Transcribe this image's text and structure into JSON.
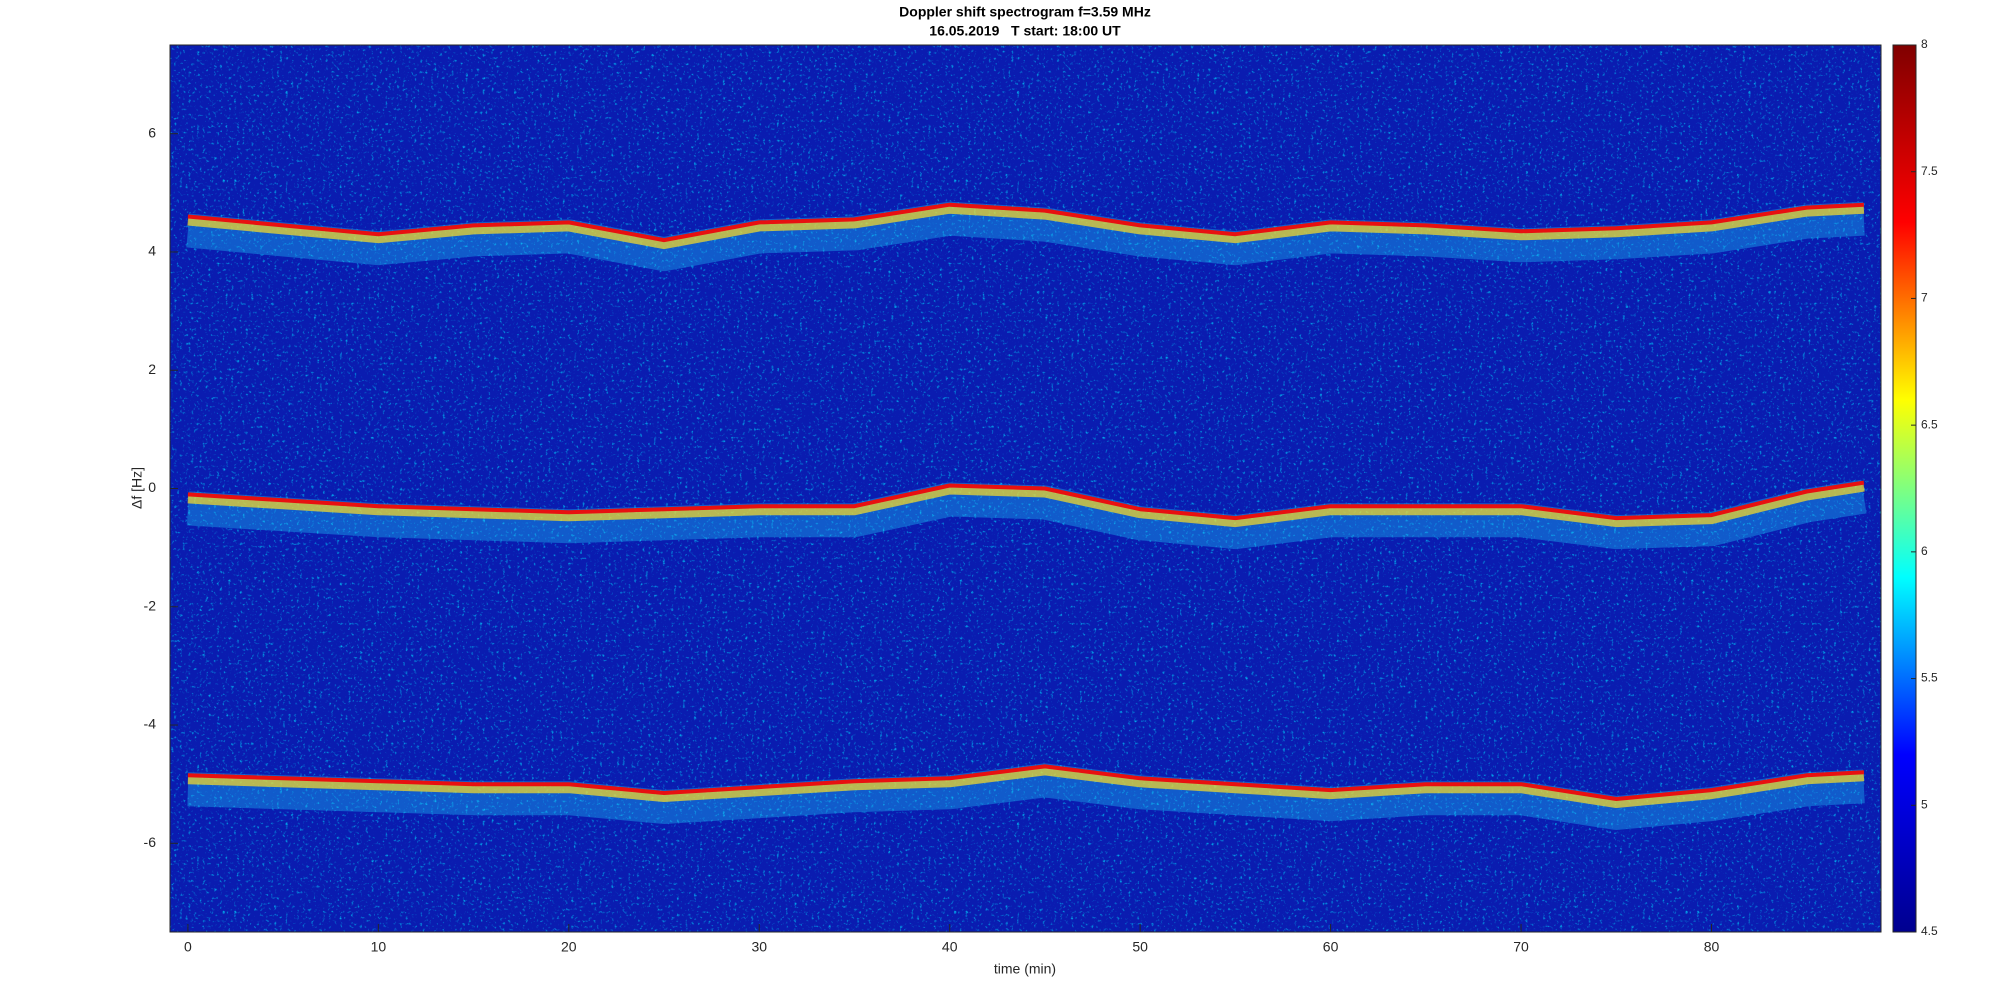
{
  "chart_data": {
    "type": "spectrogram",
    "title": "Doppler shift spectrogram f=3.59 MHz",
    "subtitle": "16.05.2019   T start: 18:00 UT",
    "x_label": "time (min)",
    "y_label": "Δf [Hz]",
    "xlim": [
      -0.94,
      88.9
    ],
    "ylim": [
      -7.5,
      7.5
    ],
    "xticks": [
      0,
      10,
      20,
      30,
      40,
      50,
      60,
      70,
      80
    ],
    "yticks": [
      -6,
      -4,
      -2,
      0,
      2,
      4,
      6
    ],
    "x": [
      0,
      5,
      10,
      15,
      20,
      25,
      30,
      35,
      40,
      45,
      50,
      55,
      60,
      65,
      70,
      75,
      80,
      85,
      88
    ],
    "series": [
      {
        "color": "#e81010",
        "values": [
          4.6,
          4.45,
          4.3,
          4.45,
          4.5,
          4.2,
          4.5,
          4.55,
          4.8,
          4.7,
          4.45,
          4.3,
          4.5,
          4.45,
          4.35,
          4.4,
          4.5,
          4.75,
          4.8
        ]
      },
      {
        "color": "#e81010",
        "values": [
          -0.1,
          -0.2,
          -0.3,
          -0.35,
          -0.4,
          -0.35,
          -0.3,
          -0.3,
          0.05,
          0.0,
          -0.35,
          -0.5,
          -0.3,
          -0.3,
          -0.3,
          -0.5,
          -0.45,
          -0.05,
          0.1
        ]
      },
      {
        "color": "#e81010",
        "values": [
          -4.85,
          -4.9,
          -4.95,
          -5.0,
          -5.0,
          -5.15,
          -5.05,
          -4.95,
          -4.9,
          -4.7,
          -4.9,
          -5.0,
          -5.1,
          -5.0,
          -5.0,
          -5.25,
          -5.1,
          -4.85,
          -4.8
        ]
      }
    ],
    "background_color": "#0a1cb0",
    "colorbar": {
      "lim": [
        4.5,
        8
      ],
      "ticks": [
        4.5,
        5,
        5.5,
        6,
        6.5,
        7,
        7.5,
        8
      ],
      "colors": [
        "#00008f",
        "#0000ff",
        "#00ffff",
        "#ffff00",
        "#ff0000",
        "#800000"
      ]
    }
  }
}
